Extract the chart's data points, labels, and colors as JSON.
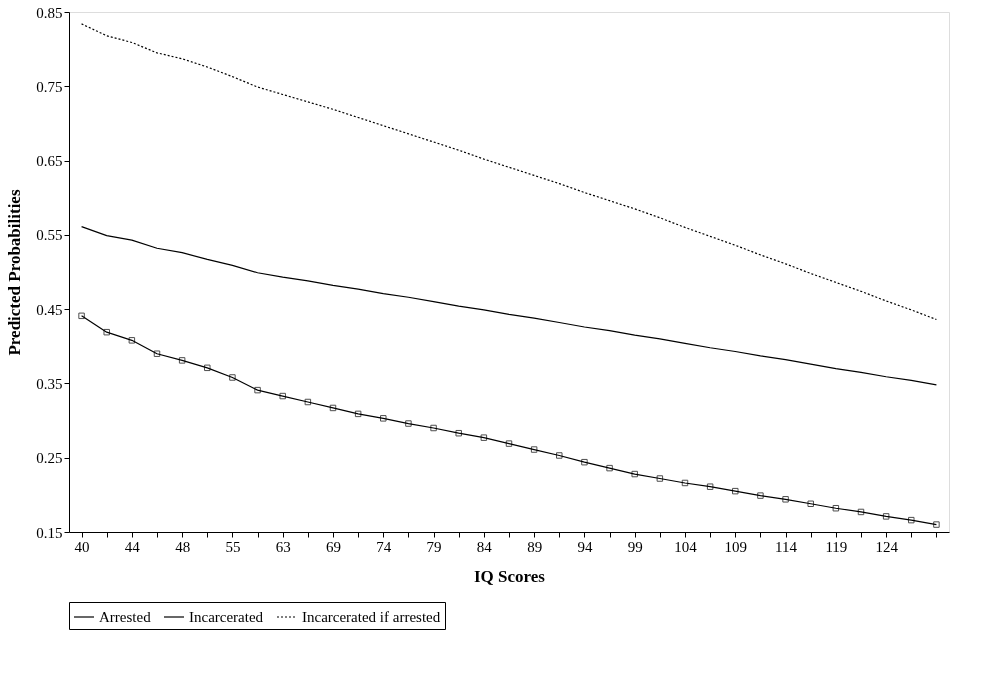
{
  "chart_data": {
    "type": "line",
    "xlabel": "IQ Scores",
    "ylabel": "Predicted Probabilities",
    "categories": [
      "40",
      null,
      "44",
      null,
      "48",
      null,
      "55",
      null,
      "63",
      null,
      "69",
      null,
      "74",
      null,
      "79",
      null,
      "84",
      null,
      "89",
      null,
      "94",
      null,
      "99",
      null,
      "104",
      null,
      "109",
      null,
      "114",
      null,
      "119",
      null,
      "124",
      null,
      null
    ],
    "series": [
      {
        "name": "Arrested",
        "color": "#000000",
        "line_style": "solid",
        "marker": "none",
        "values": [
          0.561,
          0.549,
          0.543,
          0.532,
          0.526,
          0.517,
          0.509,
          0.499,
          0.493,
          0.488,
          0.482,
          0.477,
          0.471,
          0.466,
          0.46,
          0.454,
          0.449,
          0.443,
          0.438,
          0.432,
          0.426,
          0.421,
          0.415,
          0.41,
          0.404,
          0.398,
          0.393,
          0.387,
          0.382,
          0.376,
          0.37,
          0.365,
          0.359,
          0.354,
          0.348
        ]
      },
      {
        "name": "Incarcerated",
        "color": "#000000",
        "line_style": "solid",
        "marker": "square",
        "values": [
          0.441,
          0.419,
          0.408,
          0.39,
          0.381,
          0.371,
          0.358,
          0.341,
          0.333,
          0.325,
          0.317,
          0.309,
          0.303,
          0.296,
          0.29,
          0.283,
          0.277,
          0.269,
          0.261,
          0.253,
          0.244,
          0.236,
          0.228,
          0.222,
          0.216,
          0.211,
          0.205,
          0.199,
          0.194,
          0.188,
          0.182,
          0.177,
          0.171,
          0.166,
          0.16
        ]
      },
      {
        "name": "Incarcerated if arrested",
        "color": "#000000",
        "line_style": "dotted",
        "marker": "none",
        "values": [
          0.834,
          0.818,
          0.809,
          0.795,
          0.787,
          0.776,
          0.763,
          0.749,
          0.739,
          0.729,
          0.719,
          0.708,
          0.697,
          0.686,
          0.675,
          0.664,
          0.652,
          0.641,
          0.63,
          0.619,
          0.607,
          0.596,
          0.585,
          0.573,
          0.56,
          0.548,
          0.536,
          0.523,
          0.511,
          0.498,
          0.486,
          0.474,
          0.461,
          0.449,
          0.436
        ]
      }
    ],
    "ylim": [
      0.15,
      0.85
    ],
    "yticks": [
      0.15,
      0.25,
      0.35,
      0.45,
      0.55,
      0.65,
      0.75,
      0.85
    ],
    "grid": false,
    "legend": "bottom"
  }
}
